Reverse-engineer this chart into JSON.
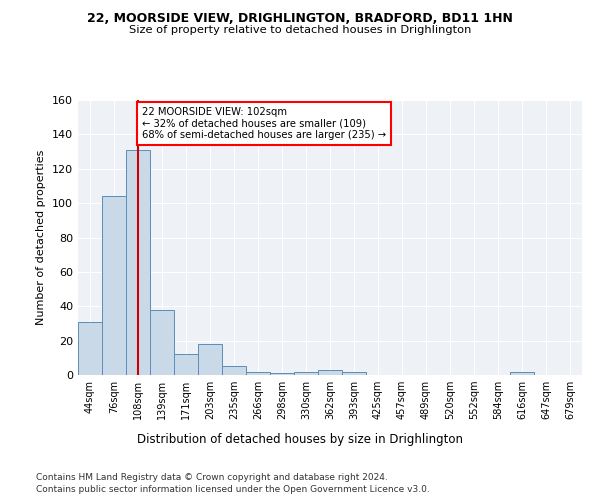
{
  "title_line1": "22, MOORSIDE VIEW, DRIGHLINGTON, BRADFORD, BD11 1HN",
  "title_line2": "Size of property relative to detached houses in Drighlington",
  "xlabel": "Distribution of detached houses by size in Drighlington",
  "ylabel": "Number of detached properties",
  "bar_color": "#c9d9e8",
  "bar_edge_color": "#5b8db8",
  "background_color": "#eef2f7",
  "categories": [
    "44sqm",
    "76sqm",
    "108sqm",
    "139sqm",
    "171sqm",
    "203sqm",
    "235sqm",
    "266sqm",
    "298sqm",
    "330sqm",
    "362sqm",
    "393sqm",
    "425sqm",
    "457sqm",
    "489sqm",
    "520sqm",
    "552sqm",
    "584sqm",
    "616sqm",
    "647sqm",
    "679sqm"
  ],
  "values": [
    31,
    104,
    131,
    38,
    12,
    18,
    5,
    2,
    1,
    2,
    3,
    2,
    0,
    0,
    0,
    0,
    0,
    0,
    2,
    0,
    0
  ],
  "ylim": [
    0,
    160
  ],
  "yticks": [
    0,
    20,
    40,
    60,
    80,
    100,
    120,
    140,
    160
  ],
  "red_line_x": 2.0,
  "annotation_text": "22 MOORSIDE VIEW: 102sqm\n← 32% of detached houses are smaller (109)\n68% of semi-detached houses are larger (235) →",
  "annotation_box_color": "white",
  "annotation_box_edge": "red",
  "red_line_color": "#cc0000",
  "footnote_line1": "Contains HM Land Registry data © Crown copyright and database right 2024.",
  "footnote_line2": "Contains public sector information licensed under the Open Government Licence v3.0."
}
